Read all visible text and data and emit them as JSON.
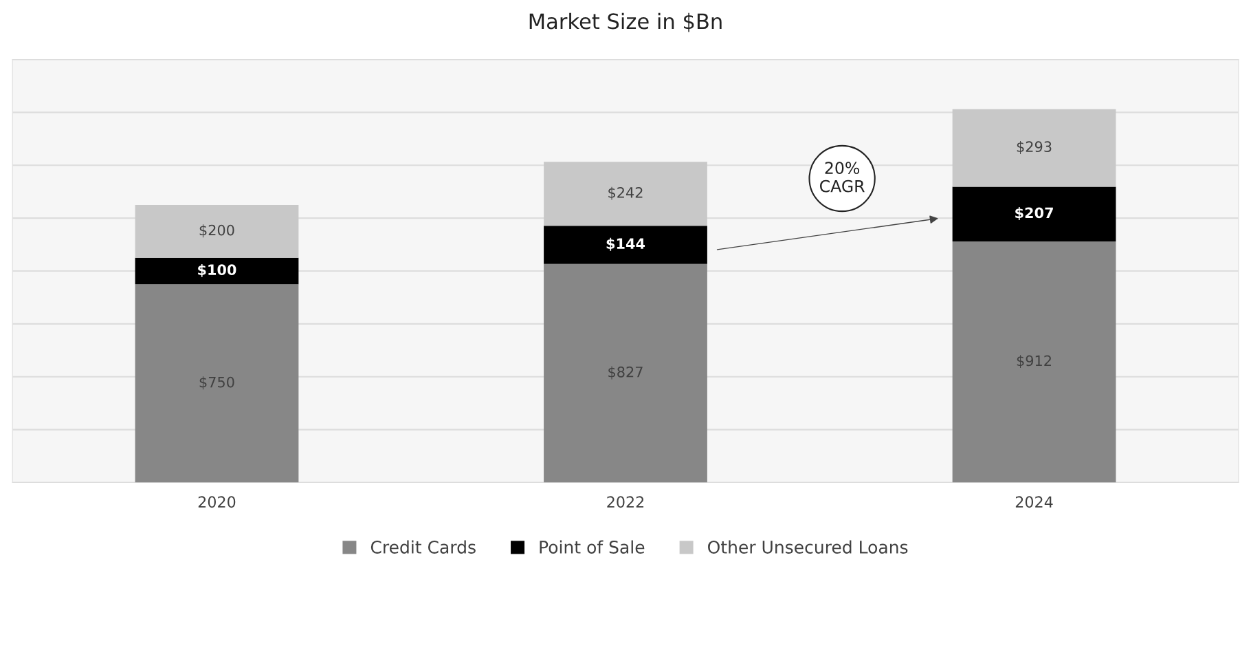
{
  "chart_data": {
    "type": "bar",
    "title": "Market Size in $Bn",
    "stacked": true,
    "categories": [
      "2020",
      "2022",
      "2024"
    ],
    "series": [
      {
        "name": "Credit Cards",
        "color": "#878787",
        "values": [
          750,
          827,
          912
        ],
        "value_labels": [
          "$750",
          "$827",
          "$912"
        ]
      },
      {
        "name": "Point of Sale",
        "color": "#000000",
        "values": [
          100,
          144,
          207
        ],
        "value_labels": [
          "$100",
          "$144",
          "$207"
        ]
      },
      {
        "name": "Other Unsecured Loans",
        "color": "#c8c8c8",
        "values": [
          200,
          242,
          293
        ],
        "value_labels": [
          "$200",
          "$242",
          "$293"
        ]
      }
    ],
    "ylim": [
      0,
      1600
    ],
    "yticks": [
      {
        "value": 0,
        "label": null
      },
      {
        "value": 200,
        "label": null
      },
      {
        "value": 400,
        "label": null
      },
      {
        "value": 600,
        "label": null
      },
      {
        "value": 800,
        "label": null
      },
      {
        "value": 1000,
        "label": null
      },
      {
        "value": 1200,
        "label": null
      },
      {
        "value": 1400,
        "label": null
      },
      {
        "value": 1600,
        "label": null
      }
    ],
    "tick_labels": "x",
    "grid": "y",
    "legend": "bottom",
    "annotations": [
      "20%\nCAGR"
    ]
  }
}
